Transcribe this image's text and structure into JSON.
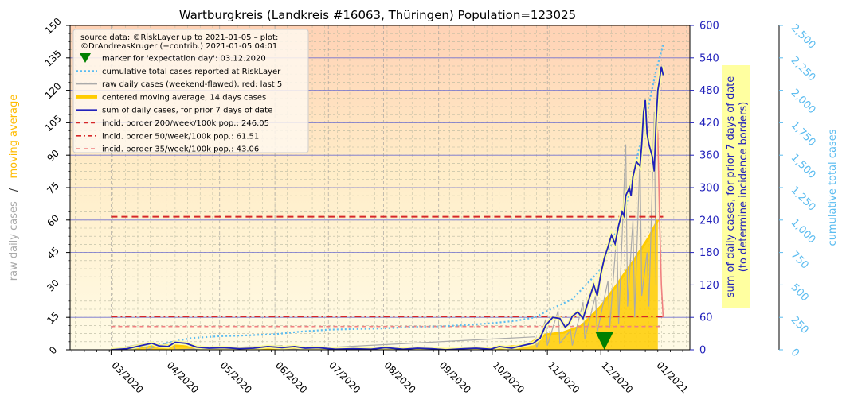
{
  "chart_data": {
    "type": "line",
    "title": "Wartburgkreis (Landkreis #16063, Thüringen) Population=123025",
    "left_axis": {
      "label_parts": [
        "raw daily cases",
        "/",
        "moving average"
      ],
      "ticks": [
        0,
        15,
        30,
        45,
        60,
        75,
        90,
        105,
        120,
        135,
        150
      ],
      "ylim": [
        0,
        150
      ]
    },
    "right_axis_1": {
      "label_lines": [
        "sum of daily cases, for prior 7 days of date",
        "(to determine incidence borders)"
      ],
      "ticks": [
        0,
        60,
        120,
        180,
        240,
        300,
        360,
        420,
        480,
        540,
        600
      ],
      "ylim": [
        0,
        600
      ]
    },
    "right_axis_2": {
      "label": "cumulative total cases",
      "ticks": [
        "0",
        "250",
        "500",
        "750",
        "1,000",
        "1,250",
        "1,500",
        "1,750",
        "2,000",
        "2,250",
        "2,500"
      ],
      "ylim": [
        0,
        2500
      ]
    },
    "x_axis": {
      "tick_labels": [
        "03/2020",
        "04/2020",
        "05/2020",
        "06/2020",
        "07/2020",
        "08/2020",
        "09/2020",
        "10/2020",
        "11/2020",
        "12/2020",
        "01/2021"
      ],
      "ticks": [
        "2020-03-01",
        "2020-04-01",
        "2020-05-01",
        "2020-06-01",
        "2020-07-01",
        "2020-08-01",
        "2020-09-01",
        "2020-10-01",
        "2020-11-01",
        "2020-12-01",
        "2021-01-01"
      ],
      "xlim": [
        "2020-02-07",
        "2021-01-20"
      ]
    },
    "legend": {
      "position": "top-left",
      "source": [
        "source data: ©RiskLayer up to 2021-01-05 – plot:",
        "©DrAndreasKruger (+contrib.) 2021-01-05 04:01"
      ],
      "entries": [
        {
          "label": "marker for 'expectation day': 03.12.2020",
          "color": "#008000",
          "style": "marker"
        },
        {
          "label": "cumulative total cases reported at RiskLayer",
          "color": "#5bbcf0",
          "style": "dotted"
        },
        {
          "label": "raw daily cases (weekend-flawed), red: last 5",
          "color": "#aaaaaa",
          "style": "line"
        },
        {
          "label": "centered moving average, 14 days cases",
          "color": "#ffcc00",
          "style": "thick"
        },
        {
          "label": "sum of daily cases, for prior 7 days of date",
          "color": "#2222bb",
          "style": "line"
        },
        {
          "label": "incid. border 200/week/100k pop.: 246.05",
          "color": "#d62728",
          "style": "dashed"
        },
        {
          "label": "incid. border 50/week/100k pop.: 61.51",
          "color": "#d62728",
          "style": "dashdot"
        },
        {
          "label": "incid. border 35/week/100k pop.: 43.06",
          "color": "#f08080",
          "style": "dashed"
        }
      ]
    },
    "incidence_borders": [
      {
        "value": 246.05,
        "start": "2020-03-01",
        "end": "2021-01-05"
      },
      {
        "value": 61.51,
        "start": "2020-03-01",
        "end": "2021-01-05"
      },
      {
        "value": 43.06,
        "start": "2020-03-01",
        "end": "2021-01-05"
      }
    ],
    "expectation_marker": {
      "date": "2020-12-03",
      "value": 0
    },
    "series": [
      {
        "name": "sum of daily cases, for prior 7 days of date",
        "axis": "right_1",
        "points": [
          [
            "2020-03-01",
            0
          ],
          [
            "2020-03-10",
            2
          ],
          [
            "2020-03-18",
            8
          ],
          [
            "2020-03-24",
            12
          ],
          [
            "2020-03-28",
            7
          ],
          [
            "2020-04-02",
            6
          ],
          [
            "2020-04-06",
            14
          ],
          [
            "2020-04-12",
            12
          ],
          [
            "2020-04-18",
            5
          ],
          [
            "2020-04-25",
            3
          ],
          [
            "2020-05-03",
            4
          ],
          [
            "2020-05-12",
            2
          ],
          [
            "2020-05-20",
            3
          ],
          [
            "2020-05-28",
            6
          ],
          [
            "2020-06-05",
            4
          ],
          [
            "2020-06-12",
            6
          ],
          [
            "2020-06-18",
            3
          ],
          [
            "2020-06-25",
            4
          ],
          [
            "2020-07-05",
            1
          ],
          [
            "2020-07-15",
            2
          ],
          [
            "2020-07-25",
            1
          ],
          [
            "2020-08-02",
            4
          ],
          [
            "2020-08-12",
            1
          ],
          [
            "2020-08-20",
            3
          ],
          [
            "2020-08-28",
            2
          ],
          [
            "2020-09-05",
            0
          ],
          [
            "2020-09-15",
            2
          ],
          [
            "2020-09-22",
            3
          ],
          [
            "2020-09-30",
            1
          ],
          [
            "2020-10-05",
            6
          ],
          [
            "2020-10-12",
            3
          ],
          [
            "2020-10-18",
            8
          ],
          [
            "2020-10-24",
            12
          ],
          [
            "2020-10-28",
            22
          ],
          [
            "2020-10-31",
            45
          ],
          [
            "2020-11-04",
            60
          ],
          [
            "2020-11-08",
            58
          ],
          [
            "2020-11-11",
            42
          ],
          [
            "2020-11-13",
            48
          ],
          [
            "2020-11-15",
            62
          ],
          [
            "2020-11-18",
            70
          ],
          [
            "2020-11-21",
            58
          ],
          [
            "2020-11-24",
            90
          ],
          [
            "2020-11-27",
            120
          ],
          [
            "2020-11-29",
            100
          ],
          [
            "2020-12-01",
            140
          ],
          [
            "2020-12-03",
            170
          ],
          [
            "2020-12-05",
            190
          ],
          [
            "2020-12-07",
            212
          ],
          [
            "2020-12-09",
            196
          ],
          [
            "2020-12-11",
            230
          ],
          [
            "2020-12-13",
            255
          ],
          [
            "2020-12-14",
            248
          ],
          [
            "2020-12-15",
            285
          ],
          [
            "2020-12-17",
            300
          ],
          [
            "2020-12-18",
            285
          ],
          [
            "2020-12-19",
            320
          ],
          [
            "2020-12-21",
            348
          ],
          [
            "2020-12-23",
            340
          ],
          [
            "2020-12-24",
            380
          ],
          [
            "2020-12-25",
            440
          ],
          [
            "2020-12-26",
            462
          ],
          [
            "2020-12-27",
            400
          ],
          [
            "2020-12-28",
            380
          ],
          [
            "2020-12-30",
            356
          ],
          [
            "2020-12-31",
            330
          ],
          [
            "2021-01-01",
            420
          ],
          [
            "2021-01-02",
            480
          ],
          [
            "2021-01-03",
            500
          ],
          [
            "2021-01-04",
            524
          ],
          [
            "2021-01-05",
            508
          ]
        ]
      },
      {
        "name": "cumulative total cases reported at RiskLayer",
        "axis": "right_2",
        "points": [
          [
            "2020-03-01",
            0
          ],
          [
            "2020-03-15",
            12
          ],
          [
            "2020-04-01",
            52
          ],
          [
            "2020-04-15",
            90
          ],
          [
            "2020-05-01",
            105
          ],
          [
            "2020-05-15",
            110
          ],
          [
            "2020-06-01",
            120
          ],
          [
            "2020-06-15",
            140
          ],
          [
            "2020-07-01",
            155
          ],
          [
            "2020-07-15",
            160
          ],
          [
            "2020-08-01",
            165
          ],
          [
            "2020-08-15",
            175
          ],
          [
            "2020-09-01",
            180
          ],
          [
            "2020-09-15",
            190
          ],
          [
            "2020-10-01",
            205
          ],
          [
            "2020-10-15",
            225
          ],
          [
            "2020-10-25",
            250
          ],
          [
            "2020-11-01",
            300
          ],
          [
            "2020-11-15",
            390
          ],
          [
            "2020-12-01",
            620
          ],
          [
            "2020-12-15",
            1100
          ],
          [
            "2020-12-25",
            1700
          ],
          [
            "2021-01-01",
            2150
          ],
          [
            "2021-01-05",
            2350
          ]
        ]
      },
      {
        "name": "centered moving average, 14 days cases",
        "axis": "left",
        "points": [
          [
            "2020-03-01",
            0
          ],
          [
            "2020-03-15",
            1
          ],
          [
            "2020-03-25",
            2
          ],
          [
            "2020-04-05",
            2
          ],
          [
            "2020-04-20",
            1
          ],
          [
            "2020-05-10",
            0.5
          ],
          [
            "2020-06-10",
            0.8
          ],
          [
            "2020-07-10",
            0.3
          ],
          [
            "2020-08-10",
            0.4
          ],
          [
            "2020-09-10",
            0.3
          ],
          [
            "2020-10-01",
            0.8
          ],
          [
            "2020-10-20",
            2
          ],
          [
            "2020-10-31",
            7
          ],
          [
            "2020-11-10",
            8
          ],
          [
            "2020-11-20",
            11
          ],
          [
            "2020-12-01",
            20
          ],
          [
            "2020-12-10",
            30
          ],
          [
            "2020-12-20",
            42
          ],
          [
            "2020-12-28",
            52
          ],
          [
            "2021-01-02",
            60
          ]
        ]
      },
      {
        "name": "raw daily cases (weekend-flawed), red: last 5",
        "axis": "left",
        "points": [
          [
            "2020-03-01",
            0
          ],
          [
            "2020-03-20",
            3
          ],
          [
            "2020-03-21",
            0
          ],
          [
            "2020-04-05",
            4
          ],
          [
            "2020-04-06",
            0
          ],
          [
            "2020-06-05",
            2
          ],
          [
            "2020-06-06",
            0
          ],
          [
            "2020-10-25",
            6
          ],
          [
            "2020-10-26",
            1
          ],
          [
            "2020-10-31",
            14
          ],
          [
            "2020-11-01",
            2
          ],
          [
            "2020-11-07",
            18
          ],
          [
            "2020-11-08",
            3
          ],
          [
            "2020-11-14",
            9
          ],
          [
            "2020-11-15",
            2
          ],
          [
            "2020-11-21",
            22
          ],
          [
            "2020-11-22",
            5
          ],
          [
            "2020-11-28",
            25
          ],
          [
            "2020-11-29",
            8
          ],
          [
            "2020-12-05",
            32
          ],
          [
            "2020-12-06",
            10
          ],
          [
            "2020-12-10",
            55
          ],
          [
            "2020-12-11",
            12
          ],
          [
            "2020-12-15",
            95
          ],
          [
            "2020-12-16",
            20
          ],
          [
            "2020-12-19",
            60
          ],
          [
            "2020-12-20",
            15
          ],
          [
            "2020-12-23",
            90
          ],
          [
            "2020-12-24",
            25
          ],
          [
            "2020-12-27",
            45
          ],
          [
            "2020-12-28",
            20
          ],
          [
            "2020-12-31",
            110
          ],
          [
            "2021-01-01",
            30
          ]
        ]
      }
    ]
  }
}
